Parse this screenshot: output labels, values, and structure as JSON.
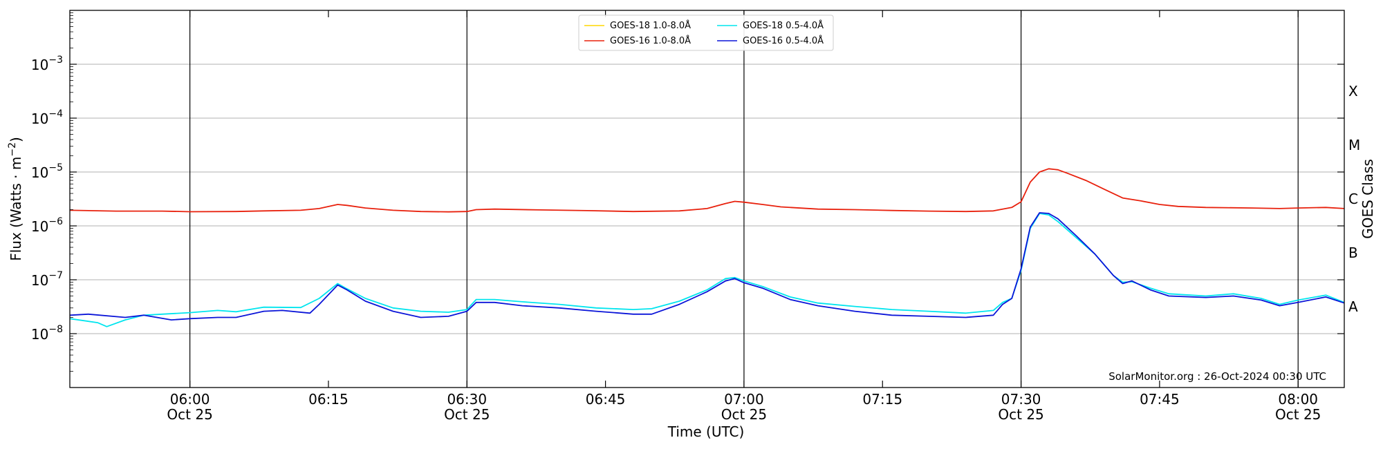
{
  "chart_data": {
    "type": "line",
    "xlabel": "Time (UTC)",
    "ylabel": "Flux (Watts · m",
    "ylabel_sup": "−2",
    "ylabel_close": ")",
    "right_label": "GOES Class",
    "credit": "SolarMonitor.org : 26-Oct-2024 00:30 UTC",
    "y_scale": "log",
    "ylim": [
      1e-09,
      0.01
    ],
    "xlim_minutes": [
      "05:47",
      "08:05"
    ],
    "grid": "horizontal",
    "legend_position": "top-center",
    "x_ticks": [
      {
        "time": "06:00",
        "label": "06:00",
        "date": "Oct 25",
        "vline": true
      },
      {
        "time": "06:15",
        "label": "06:15",
        "date": "",
        "vline": false
      },
      {
        "time": "06:30",
        "label": "06:30",
        "date": "Oct 25",
        "vline": true
      },
      {
        "time": "06:45",
        "label": "06:45",
        "date": "",
        "vline": false
      },
      {
        "time": "07:00",
        "label": "07:00",
        "date": "Oct 25",
        "vline": true
      },
      {
        "time": "07:15",
        "label": "07:15",
        "date": "",
        "vline": false
      },
      {
        "time": "07:30",
        "label": "07:30",
        "date": "Oct 25",
        "vline": true
      },
      {
        "time": "07:45",
        "label": "07:45",
        "date": "",
        "vline": false
      },
      {
        "time": "08:00",
        "label": "08:00",
        "date": "Oct 25",
        "vline": true
      }
    ],
    "y_ticks": [
      {
        "value": 1e-08,
        "base": "10",
        "exp": "−8"
      },
      {
        "value": 1e-07,
        "base": "10",
        "exp": "−7"
      },
      {
        "value": 1e-06,
        "base": "10",
        "exp": "−6"
      },
      {
        "value": 1e-05,
        "base": "10",
        "exp": "−5"
      },
      {
        "value": 0.0001,
        "base": "10",
        "exp": "−4"
      },
      {
        "value": 0.001,
        "base": "10",
        "exp": "−3"
      }
    ],
    "goes_classes": [
      {
        "label": "A",
        "value": 3.16e-08
      },
      {
        "label": "B",
        "value": 3.16e-07
      },
      {
        "label": "C",
        "value": 3.16e-06
      },
      {
        "label": "M",
        "value": 3.16e-05
      },
      {
        "label": "X",
        "value": 0.000316
      }
    ],
    "legend": [
      {
        "name": "GOES-18 1.0-8.0Å",
        "color": "#ffd700"
      },
      {
        "name": "GOES-18 0.5-4.0Å",
        "color": "#00e5ee"
      },
      {
        "name": "GOES-16 1.0-8.0Å",
        "color": "#e8200c"
      },
      {
        "name": "GOES-16 0.5-4.0Å",
        "color": "#0a14d8"
      }
    ],
    "series": [
      {
        "name": "GOES-16 1.0-8.0Å",
        "color": "#e8200c",
        "points": [
          [
            "05:47",
            1.95e-06
          ],
          [
            "05:52",
            1.88e-06
          ],
          [
            "05:57",
            1.88e-06
          ],
          [
            "06:00",
            1.83e-06
          ],
          [
            "06:05",
            1.85e-06
          ],
          [
            "06:08",
            1.9e-06
          ],
          [
            "06:12",
            1.95e-06
          ],
          [
            "06:14",
            2.1e-06
          ],
          [
            "06:16",
            2.5e-06
          ],
          [
            "06:17",
            2.4e-06
          ],
          [
            "06:19",
            2.15e-06
          ],
          [
            "06:22",
            1.95e-06
          ],
          [
            "06:25",
            1.85e-06
          ],
          [
            "06:28",
            1.82e-06
          ],
          [
            "06:30",
            1.85e-06
          ],
          [
            "06:31",
            2e-06
          ],
          [
            "06:33",
            2.05e-06
          ],
          [
            "06:38",
            1.98e-06
          ],
          [
            "06:43",
            1.92e-06
          ],
          [
            "06:48",
            1.85e-06
          ],
          [
            "06:53",
            1.9e-06
          ],
          [
            "06:56",
            2.1e-06
          ],
          [
            "06:58",
            2.6e-06
          ],
          [
            "06:59",
            2.85e-06
          ],
          [
            "07:00",
            2.75e-06
          ],
          [
            "07:02",
            2.5e-06
          ],
          [
            "07:04",
            2.25e-06
          ],
          [
            "07:08",
            2.05e-06
          ],
          [
            "07:12",
            2e-06
          ],
          [
            "07:16",
            1.93e-06
          ],
          [
            "07:20",
            1.88e-06
          ],
          [
            "07:24",
            1.85e-06
          ],
          [
            "07:27",
            1.9e-06
          ],
          [
            "07:29",
            2.2e-06
          ],
          [
            "07:30",
            2.8e-06
          ],
          [
            "07:31",
            6.5e-06
          ],
          [
            "07:32",
            1e-05
          ],
          [
            "07:33",
            1.15e-05
          ],
          [
            "07:34",
            1.1e-05
          ],
          [
            "07:35",
            9.5e-06
          ],
          [
            "07:37",
            7e-06
          ],
          [
            "07:39",
            4.8e-06
          ],
          [
            "07:41",
            3.3e-06
          ],
          [
            "07:43",
            2.9e-06
          ],
          [
            "07:45",
            2.5e-06
          ],
          [
            "07:47",
            2.3e-06
          ],
          [
            "07:50",
            2.2e-06
          ],
          [
            "07:55",
            2.15e-06
          ],
          [
            "07:58",
            2.1e-06
          ],
          [
            "08:00",
            2.15e-06
          ],
          [
            "08:03",
            2.2e-06
          ],
          [
            "08:05",
            2.1e-06
          ]
        ]
      },
      {
        "name": "GOES-18 0.5-4.0Å",
        "color": "#00e5ee",
        "points": [
          [
            "05:47",
            1.9e-08
          ],
          [
            "05:50",
            1.6e-08
          ],
          [
            "05:51",
            1.35e-08
          ],
          [
            "05:53",
            1.8e-08
          ],
          [
            "05:55",
            2.2e-08
          ],
          [
            "05:57",
            2.3e-08
          ],
          [
            "06:00",
            2.45e-08
          ],
          [
            "06:03",
            2.7e-08
          ],
          [
            "06:05",
            2.55e-08
          ],
          [
            "06:07",
            2.9e-08
          ],
          [
            "06:08",
            3.1e-08
          ],
          [
            "06:12",
            3.05e-08
          ],
          [
            "06:14",
            4.5e-08
          ],
          [
            "06:16",
            8.5e-08
          ],
          [
            "06:17",
            6.8e-08
          ],
          [
            "06:19",
            4.5e-08
          ],
          [
            "06:22",
            3e-08
          ],
          [
            "06:25",
            2.6e-08
          ],
          [
            "06:28",
            2.5e-08
          ],
          [
            "06:30",
            2.8e-08
          ],
          [
            "06:31",
            4.3e-08
          ],
          [
            "06:33",
            4.3e-08
          ],
          [
            "06:36",
            3.9e-08
          ],
          [
            "06:40",
            3.5e-08
          ],
          [
            "06:44",
            3e-08
          ],
          [
            "06:48",
            2.8e-08
          ],
          [
            "06:50",
            2.9e-08
          ],
          [
            "06:53",
            4e-08
          ],
          [
            "06:56",
            6.5e-08
          ],
          [
            "06:58",
            1.05e-07
          ],
          [
            "06:59",
            1.1e-07
          ],
          [
            "07:00",
            9.5e-08
          ],
          [
            "07:02",
            7.5e-08
          ],
          [
            "07:05",
            4.8e-08
          ],
          [
            "07:08",
            3.7e-08
          ],
          [
            "07:12",
            3.2e-08
          ],
          [
            "07:16",
            2.8e-08
          ],
          [
            "07:20",
            2.6e-08
          ],
          [
            "07:24",
            2.4e-08
          ],
          [
            "07:27",
            2.7e-08
          ],
          [
            "07:28",
            3.8e-08
          ],
          [
            "07:29",
            4.5e-08
          ],
          [
            "07:30",
            1.5e-07
          ],
          [
            "07:31",
            9e-07
          ],
          [
            "07:32",
            1.7e-06
          ],
          [
            "07:33",
            1.6e-06
          ],
          [
            "07:34",
            1.2e-06
          ],
          [
            "07:36",
            6e-07
          ],
          [
            "07:38",
            3e-07
          ],
          [
            "07:40",
            1.2e-07
          ],
          [
            "07:41",
            9e-08
          ],
          [
            "07:42",
            9.2e-08
          ],
          [
            "07:44",
            7e-08
          ],
          [
            "07:46",
            5.5e-08
          ],
          [
            "07:50",
            5e-08
          ],
          [
            "07:53",
            5.5e-08
          ],
          [
            "07:56",
            4.5e-08
          ],
          [
            "07:58",
            3.5e-08
          ],
          [
            "08:00",
            4.2e-08
          ],
          [
            "08:03",
            5.2e-08
          ],
          [
            "08:05",
            3.8e-08
          ]
        ]
      },
      {
        "name": "GOES-16 0.5-4.0Å",
        "color": "#0a14d8",
        "points": [
          [
            "05:47",
            2.2e-08
          ],
          [
            "05:49",
            2.3e-08
          ],
          [
            "05:53",
            2e-08
          ],
          [
            "05:55",
            2.2e-08
          ],
          [
            "05:58",
            1.8e-08
          ],
          [
            "06:00",
            1.9e-08
          ],
          [
            "06:03",
            2e-08
          ],
          [
            "06:05",
            2e-08
          ],
          [
            "06:08",
            2.6e-08
          ],
          [
            "06:10",
            2.7e-08
          ],
          [
            "06:13",
            2.4e-08
          ],
          [
            "06:14",
            3.5e-08
          ],
          [
            "06:16",
            8e-08
          ],
          [
            "06:17",
            6.5e-08
          ],
          [
            "06:19",
            4e-08
          ],
          [
            "06:22",
            2.6e-08
          ],
          [
            "06:25",
            2e-08
          ],
          [
            "06:28",
            2.1e-08
          ],
          [
            "06:30",
            2.6e-08
          ],
          [
            "06:31",
            3.8e-08
          ],
          [
            "06:33",
            3.8e-08
          ],
          [
            "06:36",
            3.3e-08
          ],
          [
            "06:40",
            3e-08
          ],
          [
            "06:44",
            2.6e-08
          ],
          [
            "06:48",
            2.3e-08
          ],
          [
            "06:50",
            2.3e-08
          ],
          [
            "06:53",
            3.5e-08
          ],
          [
            "06:56",
            6e-08
          ],
          [
            "06:58",
            9.5e-08
          ],
          [
            "06:59",
            1.05e-07
          ],
          [
            "07:00",
            8.8e-08
          ],
          [
            "07:02",
            7e-08
          ],
          [
            "07:05",
            4.3e-08
          ],
          [
            "07:08",
            3.3e-08
          ],
          [
            "07:12",
            2.6e-08
          ],
          [
            "07:16",
            2.2e-08
          ],
          [
            "07:20",
            2.1e-08
          ],
          [
            "07:24",
            2e-08
          ],
          [
            "07:27",
            2.2e-08
          ],
          [
            "07:28",
            3.5e-08
          ],
          [
            "07:29",
            4.5e-08
          ],
          [
            "07:30",
            1.6e-07
          ],
          [
            "07:31",
            9.5e-07
          ],
          [
            "07:32",
            1.75e-06
          ],
          [
            "07:33",
            1.7e-06
          ],
          [
            "07:34",
            1.35e-06
          ],
          [
            "07:36",
            6.5e-07
          ],
          [
            "07:38",
            3e-07
          ],
          [
            "07:40",
            1.2e-07
          ],
          [
            "07:41",
            8.5e-08
          ],
          [
            "07:42",
            9.5e-08
          ],
          [
            "07:44",
            6.5e-08
          ],
          [
            "07:46",
            5e-08
          ],
          [
            "07:50",
            4.7e-08
          ],
          [
            "07:53",
            5e-08
          ],
          [
            "07:56",
            4.2e-08
          ],
          [
            "07:58",
            3.3e-08
          ],
          [
            "08:00",
            3.8e-08
          ],
          [
            "08:03",
            4.8e-08
          ],
          [
            "08:05",
            3.7e-08
          ]
        ]
      }
    ]
  }
}
